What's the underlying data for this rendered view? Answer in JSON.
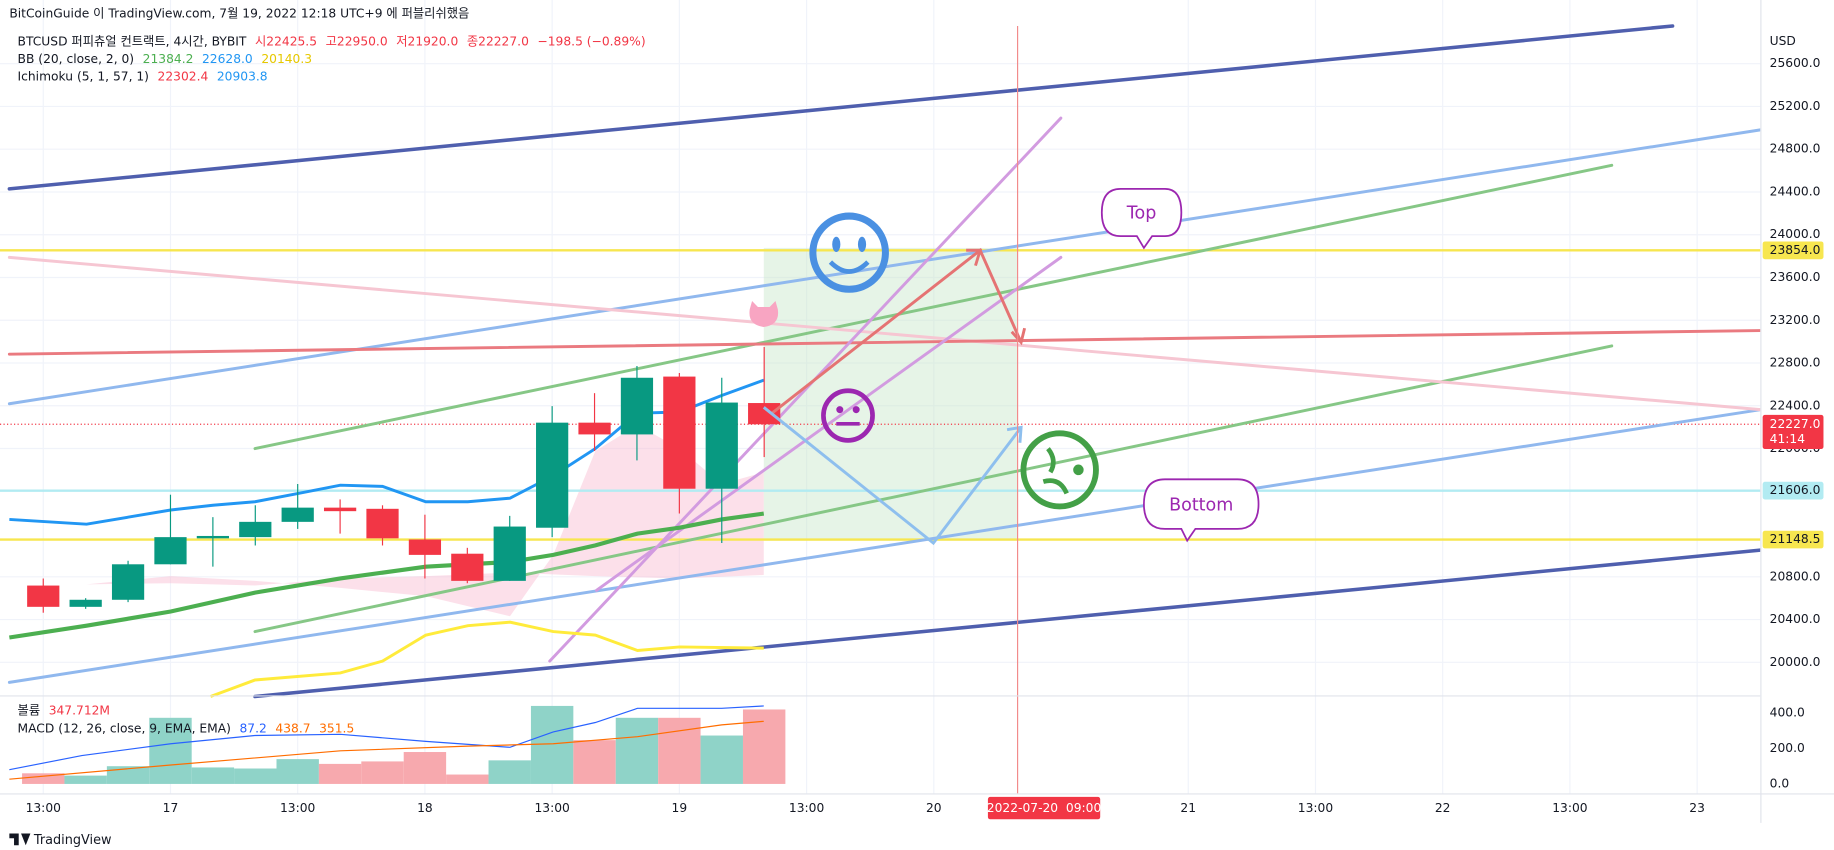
{
  "header": {
    "published": "BitCoinGuide 이 TradingView.com, 7월 19, 2022 12:18 UTC+9 에 퍼블리쉬했음",
    "symbol": "BTCUSD 퍼피츄얼 컨트랙트, 4시간, BYBIT",
    "ohlc": [
      "시22425.5",
      "고22950.0",
      "저21920.0",
      "종22227.0",
      "−198.5 (−0.89%)"
    ],
    "bb": {
      "name": "BB (20, close, 2, 0)",
      "values": [
        "21384.2",
        "22628.0",
        "20140.3"
      ]
    },
    "ichimoku": {
      "name": "Ichimoku (5, 1, 57, 1)",
      "values": [
        "22302.4",
        "20903.8"
      ]
    },
    "volume": {
      "name": "볼륨",
      "value": "347.712M"
    },
    "macd": {
      "name": "MACD (12, 26, close, 9, EMA, EMA)",
      "values": [
        "87.2",
        "438.7",
        "351.5"
      ]
    }
  },
  "annotations": [
    "Top",
    "Bottom"
  ],
  "footer": "TradingView",
  "chart_data": [
    {
      "type": "candlestick",
      "currency": "USD",
      "x": [
        0,
        1,
        2,
        3,
        4,
        5,
        6,
        7,
        8,
        9,
        10,
        11,
        12,
        13,
        14,
        15,
        16,
        17
      ],
      "open": [
        20718,
        20519,
        20585,
        20917,
        21160,
        21171,
        21314,
        21447,
        21436,
        21149,
        21016,
        20762,
        21259,
        22242,
        22132,
        22673,
        21624,
        22425.5
      ],
      "high": [
        20784,
        20600,
        20950,
        21568,
        21358,
        21469,
        21668,
        21524,
        21469,
        21381,
        21071,
        21370,
        22397,
        22518,
        22772,
        22706,
        22662,
        22950
      ],
      "low": [
        20464,
        20500,
        20563,
        20917,
        20895,
        21093,
        21248,
        21204,
        21093,
        20784,
        20740,
        20762,
        21171,
        21977,
        21889,
        21392,
        21116,
        21920
      ],
      "close": [
        20519,
        20585,
        20917,
        21171,
        21182,
        21314,
        21447,
        21414,
        21160,
        21005,
        20762,
        21270,
        22242,
        22132,
        22662,
        21624,
        22430,
        22227
      ],
      "up_color": "#089981",
      "down_color": "#f23645",
      "xlim": [
        -1.02,
        40.49
      ],
      "xticks": [
        {
          "value": 0,
          "label": "13:00"
        },
        {
          "value": 3,
          "label": "17"
        },
        {
          "value": 6,
          "label": "13:00"
        },
        {
          "value": 9,
          "label": "18"
        },
        {
          "value": 12,
          "label": "13:00"
        },
        {
          "value": 15,
          "label": "19"
        },
        {
          "value": 18,
          "label": "13:00"
        },
        {
          "value": 21,
          "label": "20"
        },
        {
          "value": 27,
          "label": "21"
        },
        {
          "value": 30,
          "label": "13:00"
        },
        {
          "value": 33,
          "label": "22"
        },
        {
          "value": 36,
          "label": "13:00"
        },
        {
          "value": 39,
          "label": "23"
        }
      ],
      "ylim": [
        19702,
        25953
      ],
      "yticks": [
        {
          "value": 20000,
          "label": "20000.0"
        },
        {
          "value": 20400,
          "label": "20400.0"
        },
        {
          "value": 20800,
          "label": "20800.0"
        },
        {
          "value": 22000,
          "label": "22000.0"
        },
        {
          "value": 22400,
          "label": "22400.0"
        },
        {
          "value": 22800,
          "label": "22800.0"
        },
        {
          "value": 23200,
          "label": "23200.0"
        },
        {
          "value": 23600,
          "label": "23600.0"
        },
        {
          "value": 24000,
          "label": "24000.0"
        },
        {
          "value": 24400,
          "label": "24400.0"
        },
        {
          "value": 24800,
          "label": "24800.0"
        },
        {
          "value": 25200,
          "label": "25200.0"
        },
        {
          "value": 25600,
          "label": "25600.0"
        }
      ],
      "grid": true,
      "price_lines": [
        {
          "value": 23854,
          "label": "23854.0",
          "color": "#f7e64f",
          "text_color": "#131722"
        },
        {
          "value": 21606,
          "label": "21606.0",
          "color": "#b2ebf2",
          "text_color": "#131722"
        },
        {
          "value": 21148.5,
          "label": "21148.5",
          "color": "#f7e64f",
          "text_color": "#131722"
        }
      ],
      "current_price": {
        "value": 22227,
        "label": "22227.0",
        "countdown": "41:14",
        "color": "#f23645"
      },
      "crosshair": {
        "x": 23.6,
        "label": "2022-07-20  09:00",
        "color": "#f23645"
      }
    },
    {
      "type": "bar",
      "x": [
        0,
        1,
        2,
        3,
        4,
        5,
        6,
        7,
        8,
        9,
        10,
        11,
        12,
        13,
        14,
        15,
        16,
        17
      ],
      "values": [
        60,
        47,
        100,
        373,
        93,
        87,
        140,
        113,
        127,
        180,
        53,
        133,
        440,
        247,
        373,
        373,
        273,
        420
      ],
      "up_color": "#8fd3c8",
      "down_color": "#f7a9ae",
      "ylim": [
        -53,
        493
      ],
      "yticks": [
        {
          "value": 0,
          "label": "0.0"
        },
        {
          "value": 200,
          "label": "200.0"
        },
        {
          "value": 400,
          "label": "400.0"
        }
      ]
    }
  ]
}
